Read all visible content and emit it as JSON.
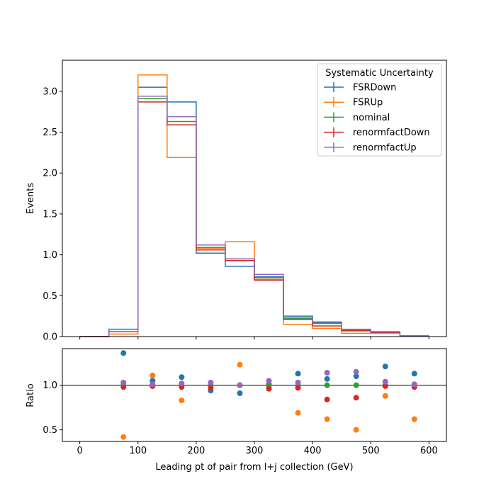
{
  "chart_data": [
    {
      "type": "step",
      "panel": "main",
      "ylabel": "Events",
      "xlim": [
        -30,
        630
      ],
      "ylim": [
        0,
        3.38
      ],
      "bin_edges": [
        0,
        50,
        100,
        150,
        200,
        250,
        300,
        350,
        400,
        450,
        500,
        550,
        600
      ],
      "xticks": [
        0,
        100,
        200,
        300,
        400,
        500,
        600
      ],
      "yticks": [
        0.0,
        0.5,
        1.0,
        1.5,
        2.0,
        2.5,
        3.0
      ],
      "ytick_labels": [
        "0.0",
        "0.5",
        "1.0",
        "1.5",
        "2.0",
        "2.5",
        "3.0"
      ],
      "legend": {
        "title": "Systematic Uncertainty",
        "position": "top-right"
      },
      "series": [
        {
          "name": "FSRDown",
          "color": "#1f77b4",
          "values": [
            0.0,
            0.09,
            3.05,
            2.87,
            1.02,
            0.86,
            0.73,
            0.25,
            0.17,
            0.07,
            0.06,
            0.01
          ]
        },
        {
          "name": "FSRUp",
          "color": "#ff7f0e",
          "values": [
            0.0,
            0.03,
            3.2,
            2.19,
            1.08,
            1.16,
            0.7,
            0.15,
            0.1,
            0.04,
            0.04,
            0.005
          ]
        },
        {
          "name": "nominal",
          "color": "#2ca02c",
          "values": [
            0.0,
            0.06,
            2.91,
            2.63,
            1.09,
            0.95,
            0.72,
            0.22,
            0.16,
            0.08,
            0.05,
            0.008
          ]
        },
        {
          "name": "renormfactDown",
          "color": "#d62728",
          "values": [
            0.0,
            0.06,
            2.87,
            2.59,
            1.06,
            0.93,
            0.69,
            0.21,
            0.13,
            0.07,
            0.05,
            0.008
          ]
        },
        {
          "name": "renormfactUp",
          "color": "#9467bd",
          "values": [
            0.0,
            0.06,
            2.94,
            2.69,
            1.12,
            0.95,
            0.76,
            0.23,
            0.18,
            0.09,
            0.06,
            0.01
          ]
        }
      ]
    },
    {
      "type": "scatter",
      "panel": "ratio",
      "xlabel": "Leading pt of pair from l+j collection (GeV)",
      "ylabel": "Ratio",
      "xlim": [
        -30,
        630
      ],
      "ylim": [
        0.37,
        1.41
      ],
      "xticks": [
        0,
        100,
        200,
        300,
        400,
        500,
        600
      ],
      "xtick_labels": [
        "0",
        "100",
        "200",
        "300",
        "400",
        "500",
        "600"
      ],
      "yticks": [
        0.5,
        1.0
      ],
      "ytick_labels": [
        "0.5",
        "1.0"
      ],
      "reference_line": 1.0,
      "x": [
        75,
        125,
        175,
        225,
        275,
        325,
        375,
        425,
        475,
        525,
        575
      ],
      "series": [
        {
          "name": "FSRDown",
          "color": "#1f77b4",
          "values": [
            1.36,
            1.05,
            1.09,
            0.94,
            0.91,
            1.01,
            1.13,
            1.07,
            1.1,
            1.21,
            1.13
          ]
        },
        {
          "name": "FSRUp",
          "color": "#ff7f0e",
          "values": [
            0.42,
            1.11,
            0.83,
            0.99,
            1.23,
            0.97,
            0.69,
            0.62,
            0.5,
            0.88,
            0.62
          ]
        },
        {
          "name": "nominal",
          "color": "#2ca02c",
          "values": [
            1.0,
            1.0,
            1.0,
            1.0,
            1.0,
            1.0,
            1.0,
            1.0,
            1.0,
            1.0,
            1.0
          ]
        },
        {
          "name": "renormfactDown",
          "color": "#d62728",
          "values": [
            0.98,
            0.99,
            0.98,
            0.97,
            1.0,
            0.96,
            0.97,
            0.84,
            0.86,
            0.99,
            0.98
          ]
        },
        {
          "name": "renormfactUp",
          "color": "#9467bd",
          "values": [
            1.03,
            1.01,
            1.02,
            1.03,
            1.0,
            1.05,
            1.03,
            1.14,
            1.15,
            1.04,
            1.01
          ]
        }
      ]
    }
  ]
}
